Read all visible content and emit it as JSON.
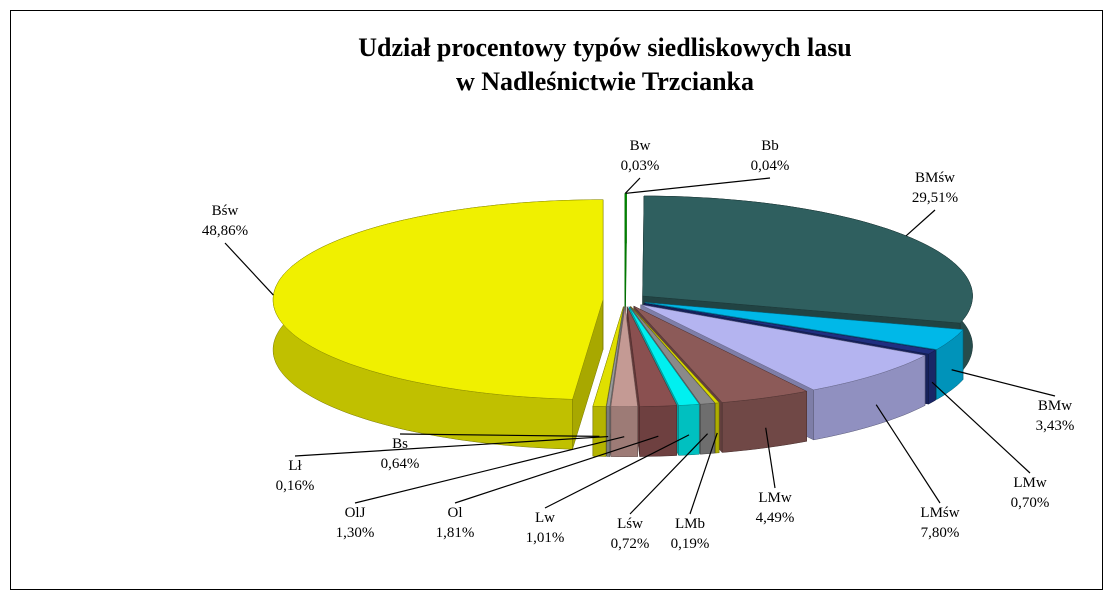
{
  "chart_data": {
    "type": "pie3d",
    "title": "Udział procentowy typów siedliskowych lasu",
    "subtitle": "w Nadleśnictwie Trzcianka",
    "categories": [
      "Bw",
      "Bb",
      "BMśw",
      "BMw",
      "LMw",
      "LMśw",
      "LMw",
      "LMb",
      "Lśw",
      "Lw",
      "Ol",
      "OlJ",
      "Lł",
      "Bs",
      "Bśw"
    ],
    "values": [
      0.03,
      0.04,
      29.51,
      3.43,
      0.7,
      7.8,
      4.49,
      0.19,
      0.72,
      1.01,
      1.81,
      1.3,
      0.16,
      0.64,
      48.86
    ],
    "value_labels": [
      "0,03%",
      "0,04%",
      "29,51%",
      "3,43%",
      "0,70%",
      "7,80%",
      "4,49%",
      "0,19%",
      "0,72%",
      "1,01%",
      "1,81%",
      "1,30%",
      "0,16%",
      "0,64%",
      "48,86%"
    ],
    "colors": [
      "#00cc00",
      "#00cc00",
      "#2f5f5f",
      "#00b8e8",
      "#1f2f80",
      "#b4b4f0",
      "#8c5a58",
      "#d8d800",
      "#8a8a8a",
      "#00f0f0",
      "#8a5050",
      "#c49a94",
      "#9a9a9a",
      "#e0e000",
      "#f0f000"
    ]
  }
}
